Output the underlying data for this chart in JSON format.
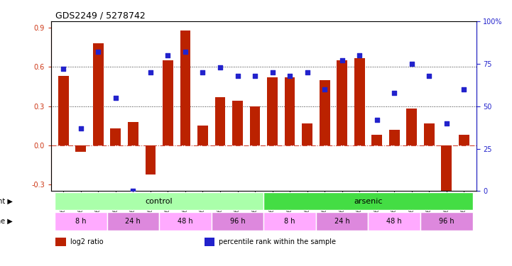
{
  "title": "GDS2249 / 5278742",
  "samples": [
    "GSM67029",
    "GSM67030",
    "GSM67031",
    "GSM67023",
    "GSM67024",
    "GSM67025",
    "GSM67026",
    "GSM67027",
    "GSM67028",
    "GSM67032",
    "GSM67033",
    "GSM67034",
    "GSM67017",
    "GSM67018",
    "GSM67019",
    "GSM67011",
    "GSM67012",
    "GSM67013",
    "GSM67014",
    "GSM67015",
    "GSM67016",
    "GSM67020",
    "GSM67021",
    "GSM67022"
  ],
  "log2_ratio": [
    0.53,
    -0.05,
    0.78,
    0.13,
    0.18,
    -0.22,
    0.65,
    0.88,
    0.15,
    0.37,
    0.34,
    0.3,
    0.52,
    0.52,
    0.17,
    0.5,
    0.65,
    0.67,
    0.08,
    0.12,
    0.28,
    0.17,
    -0.35,
    0.08
  ],
  "percentile": [
    72,
    37,
    82,
    55,
    0,
    70,
    80,
    82,
    70,
    73,
    68,
    68,
    70,
    68,
    70,
    60,
    77,
    80,
    42,
    58,
    75,
    68,
    40,
    60
  ],
  "bar_color": "#bb2200",
  "dot_color": "#2222cc",
  "zero_line_color": "#cc4433",
  "grid_color": "#333333",
  "ylim_left": [
    -0.35,
    0.95
  ],
  "ylim_right": [
    0,
    100
  ],
  "yticks_left": [
    -0.3,
    0.0,
    0.3,
    0.6,
    0.9
  ],
  "yticks_right": [
    0,
    25,
    50,
    75,
    100
  ],
  "hlines": [
    0.3,
    0.6
  ],
  "agent_groups": [
    {
      "label": "control",
      "start": 0,
      "end": 12,
      "color": "#aaffaa"
    },
    {
      "label": "arsenic",
      "start": 12,
      "end": 24,
      "color": "#44dd44"
    }
  ],
  "time_groups": [
    {
      "label": "8 h",
      "start": 0,
      "end": 3,
      "color": "#ffaaff"
    },
    {
      "label": "24 h",
      "start": 3,
      "end": 6,
      "color": "#dd88dd"
    },
    {
      "label": "48 h",
      "start": 6,
      "end": 9,
      "color": "#ffaaff"
    },
    {
      "label": "96 h",
      "start": 9,
      "end": 12,
      "color": "#dd88dd"
    },
    {
      "label": "8 h",
      "start": 12,
      "end": 15,
      "color": "#ffaaff"
    },
    {
      "label": "24 h",
      "start": 15,
      "end": 18,
      "color": "#dd88dd"
    },
    {
      "label": "48 h",
      "start": 18,
      "end": 21,
      "color": "#ffaaff"
    },
    {
      "label": "96 h",
      "start": 21,
      "end": 24,
      "color": "#dd88dd"
    }
  ],
  "legend_items": [
    {
      "color": "#bb2200",
      "label": "log2 ratio"
    },
    {
      "color": "#2222cc",
      "label": "percentile rank within the sample"
    }
  ],
  "bg_color": "#ffffff",
  "tick_label_color_left": "#cc3311",
  "tick_label_color_right": "#2222cc",
  "bar_width": 0.6
}
